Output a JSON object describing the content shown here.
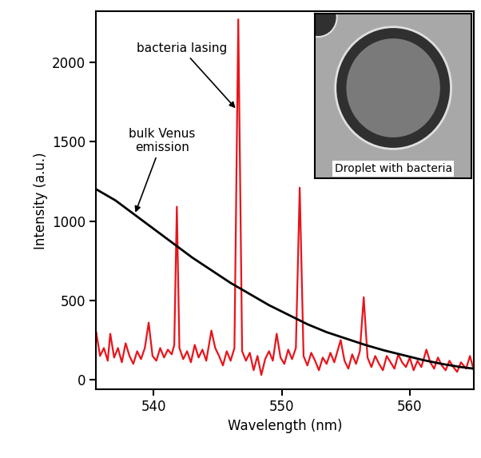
{
  "chart_data": {
    "type": "line",
    "xlabel": "Wavelength (nm)",
    "ylabel": "Intensity (a.u.)",
    "xlim": [
      535.5,
      565
    ],
    "ylim": [
      -60,
      2320
    ],
    "xticks": [
      540,
      550,
      560
    ],
    "yticks": [
      0,
      500,
      1000,
      1500,
      2000
    ],
    "series": [
      {
        "color": "#e8141b",
        "x": [
          535.5,
          535.8,
          536.1,
          536.4,
          536.6,
          536.9,
          537.2,
          537.5,
          537.8,
          538.1,
          538.4,
          538.7,
          539.0,
          539.3,
          539.6,
          539.9,
          540.2,
          540.5,
          540.8,
          541.1,
          541.4,
          541.6,
          541.8,
          542.0,
          542.3,
          542.6,
          542.9,
          543.2,
          543.5,
          543.8,
          544.1,
          544.5,
          544.8,
          545.1,
          545.4,
          545.7,
          546.0,
          546.3,
          546.6,
          546.9,
          547.2,
          547.5,
          547.8,
          548.1,
          548.4,
          548.7,
          549.0,
          549.3,
          549.6,
          549.9,
          550.2,
          550.5,
          550.8,
          551.1,
          551.4,
          551.7,
          552.0,
          552.3,
          552.6,
          552.9,
          553.2,
          553.5,
          553.8,
          554.1,
          554.6,
          554.9,
          555.2,
          555.5,
          555.8,
          556.1,
          556.4,
          556.7,
          557.0,
          557.3,
          557.6,
          557.9,
          558.2,
          558.5,
          558.8,
          559.1,
          559.4,
          559.7,
          560.0,
          560.3,
          560.6,
          560.9,
          561.3,
          561.6,
          561.9,
          562.2,
          562.5,
          562.8,
          563.1,
          563.4,
          563.7,
          564.0,
          564.4,
          564.7,
          565.0
        ],
        "values": [
          300,
          150,
          200,
          120,
          290,
          140,
          200,
          110,
          230,
          150,
          100,
          180,
          130,
          200,
          360,
          150,
          120,
          200,
          140,
          190,
          160,
          220,
          1090,
          200,
          130,
          180,
          110,
          220,
          140,
          190,
          120,
          310,
          200,
          150,
          90,
          180,
          120,
          200,
          2270,
          180,
          120,
          170,
          60,
          150,
          30,
          130,
          180,
          120,
          290,
          140,
          100,
          190,
          130,
          200,
          1210,
          150,
          90,
          170,
          120,
          60,
          140,
          100,
          170,
          110,
          250,
          120,
          70,
          160,
          100,
          180,
          520,
          140,
          80,
          150,
          100,
          60,
          150,
          110,
          70,
          160,
          110,
          80,
          140,
          60,
          120,
          80,
          190,
          110,
          70,
          140,
          90,
          60,
          120,
          80,
          50,
          110,
          70,
          150,
          60
        ]
      },
      {
        "color": "#000000",
        "x": [
          535.5,
          537,
          538.5,
          540,
          541.5,
          543,
          544.5,
          546,
          547.5,
          549,
          550.5,
          552,
          553.5,
          555,
          556.5,
          558,
          559.5,
          561,
          562.5,
          564,
          565
        ],
        "values": [
          1200,
          1130,
          1040,
          950,
          860,
          770,
          690,
          610,
          540,
          470,
          410,
          350,
          300,
          260,
          220,
          185,
          155,
          125,
          100,
          80,
          70
        ]
      }
    ],
    "annotations": [
      {
        "text": "bacteria lasing",
        "x": 546.5,
        "y": 1700
      },
      {
        "text": "bulk Venus\nemission",
        "x": 538.5,
        "y": 1040
      }
    ],
    "inset": {
      "label": "Droplet with bacteria"
    }
  }
}
